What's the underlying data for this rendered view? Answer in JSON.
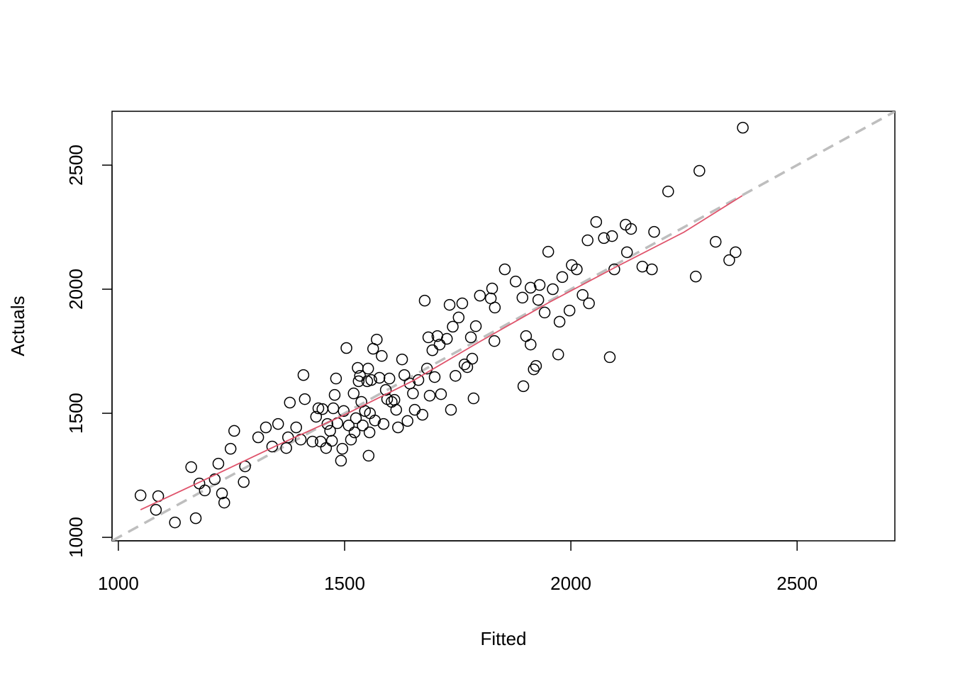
{
  "chart_data": {
    "type": "scatter",
    "xlabel": "Fitted",
    "ylabel": "Actuals",
    "xlim": [
      986,
      2716
    ],
    "ylim": [
      986,
      2717
    ],
    "xticks": [
      1000,
      1500,
      2000,
      2500
    ],
    "yticks": [
      1000,
      1500,
      2000,
      2500
    ],
    "reference_line": {
      "slope": 1,
      "intercept": 0,
      "color": "#BEBEBE",
      "dashed": true
    },
    "series": [
      {
        "mode": "points",
        "color": "#000000",
        "x": [
          1049,
          1088,
          1083,
          1125,
          1171,
          1161,
          1179,
          1191,
          1213,
          1221,
          1229,
          1234,
          1248,
          1256,
          1277,
          1280,
          1309,
          1326,
          1340,
          1353,
          1371,
          1375,
          1379,
          1393,
          1403,
          1409,
          1412,
          1429,
          1437,
          1442,
          1447,
          1451,
          1459,
          1462,
          1468,
          1472,
          1475,
          1478,
          1481,
          1484,
          1492,
          1495,
          1498,
          1504,
          1509,
          1514,
          1520,
          1522,
          1525,
          1529,
          1531,
          1534,
          1537,
          1540,
          1545,
          1550,
          1552,
          1553,
          1555,
          1556,
          1559,
          1563,
          1567,
          1571,
          1577,
          1582,
          1586,
          1591,
          1594,
          1599,
          1604,
          1610,
          1614,
          1618,
          1627,
          1632,
          1639,
          1644,
          1651,
          1655,
          1663,
          1672,
          1677,
          1682,
          1685,
          1688,
          1694,
          1699,
          1705,
          1710,
          1713,
          1726,
          1732,
          1735,
          1739,
          1745,
          1752,
          1760,
          1765,
          1771,
          1779,
          1782,
          1785,
          1790,
          1799,
          1823,
          1826,
          1831,
          1832,
          1854,
          1878,
          1893,
          1895,
          1901,
          1911,
          1911,
          1918,
          1923,
          1928,
          1931,
          1942,
          1950,
          1960,
          1972,
          1975,
          1981,
          1997,
          2002,
          2013,
          2026,
          2037,
          2040,
          2056,
          2073,
          2086,
          2091,
          2096,
          2121,
          2124,
          2133,
          2158,
          2179,
          2184,
          2215,
          2276,
          2284,
          2320,
          2350,
          2364,
          2380
        ],
        "values": [
          1169,
          1166,
          1111,
          1060,
          1077,
          1283,
          1217,
          1189,
          1234,
          1297,
          1177,
          1140,
          1357,
          1429,
          1223,
          1286,
          1403,
          1443,
          1366,
          1457,
          1360,
          1403,
          1543,
          1443,
          1394,
          1654,
          1557,
          1386,
          1486,
          1520,
          1386,
          1517,
          1360,
          1457,
          1429,
          1389,
          1520,
          1574,
          1640,
          1460,
          1309,
          1357,
          1509,
          1763,
          1451,
          1394,
          1580,
          1423,
          1480,
          1683,
          1629,
          1651,
          1546,
          1451,
          1509,
          1629,
          1680,
          1329,
          1423,
          1500,
          1634,
          1760,
          1471,
          1797,
          1643,
          1731,
          1457,
          1594,
          1557,
          1640,
          1546,
          1554,
          1514,
          1443,
          1717,
          1654,
          1469,
          1620,
          1580,
          1514,
          1634,
          1494,
          1954,
          1680,
          1806,
          1571,
          1754,
          1646,
          1811,
          1777,
          1577,
          1800,
          1937,
          1514,
          1849,
          1651,
          1886,
          1943,
          1697,
          1686,
          1806,
          1720,
          1560,
          1851,
          1974,
          1963,
          2003,
          1791,
          1926,
          2080,
          2031,
          1966,
          1609,
          1811,
          1777,
          2006,
          1677,
          1691,
          1957,
          2017,
          1906,
          2151,
          2000,
          1737,
          1869,
          2049,
          1914,
          2097,
          2080,
          1977,
          2197,
          1943,
          2271,
          2206,
          1726,
          2214,
          2080,
          2260,
          2149,
          2243,
          2091,
          2080,
          2231,
          2394,
          2051,
          2477,
          2191,
          2117,
          2149,
          2651
        ]
      },
      {
        "mode": "line",
        "color": "#DF536B",
        "x": [
          1049,
          1200,
          1350,
          1500,
          1650,
          1800,
          1950,
          2100,
          2250,
          2379
        ],
        "values": [
          1111,
          1240,
          1370,
          1494,
          1630,
          1790,
          1945,
          2090,
          2230,
          2377
        ]
      }
    ]
  }
}
